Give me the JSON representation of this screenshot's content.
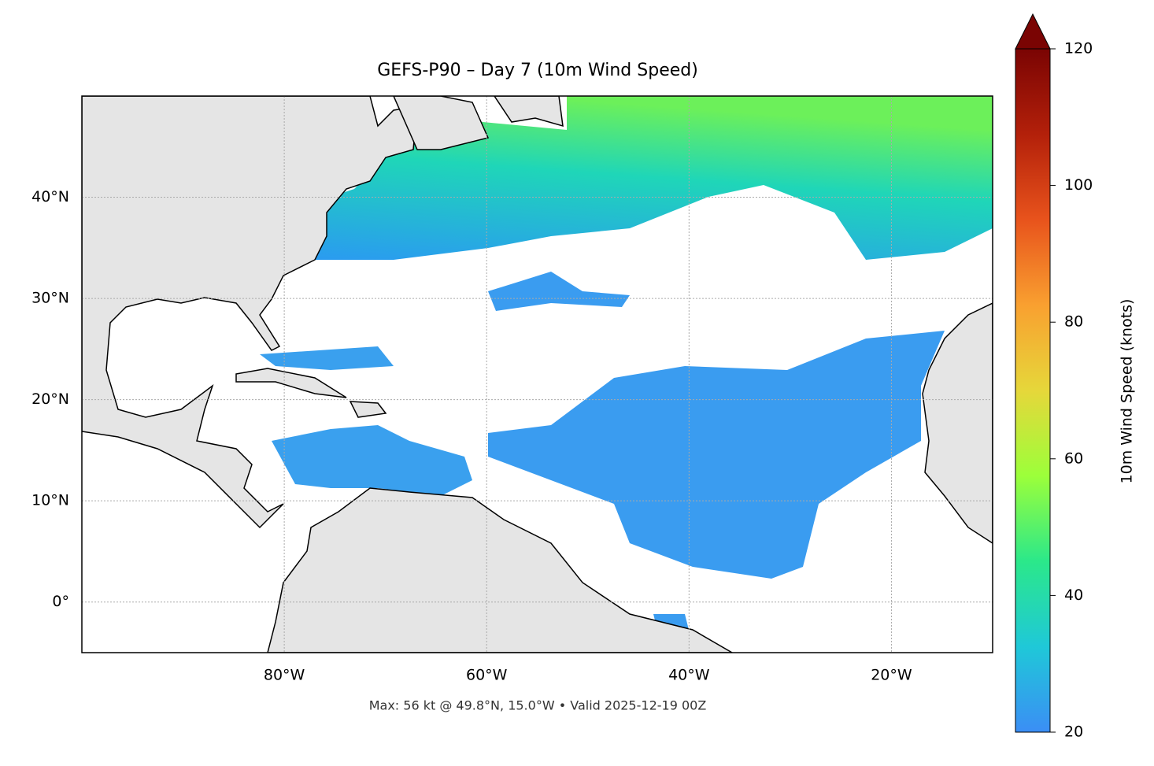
{
  "title": "GEFS-P90 – Day 7 (10m Wind Speed)",
  "map": {
    "xlim": [
      -100,
      -10
    ],
    "ylim": [
      -5,
      50
    ],
    "xticks": [
      {
        "value": -80,
        "label": "80°W"
      },
      {
        "value": -60,
        "label": "60°W"
      },
      {
        "value": -40,
        "label": "40°W"
      },
      {
        "value": -20,
        "label": "20°W"
      }
    ],
    "yticks": [
      {
        "value": 0,
        "label": "0°"
      },
      {
        "value": 10,
        "label": "10°N"
      },
      {
        "value": 20,
        "label": "20°N"
      },
      {
        "value": 30,
        "label": "30°N"
      },
      {
        "value": 40,
        "label": "40°N"
      }
    ],
    "grid": true
  },
  "colorbar": {
    "label": "10m Wind Speed (knots)",
    "lim": [
      20,
      120
    ],
    "ticks": [
      20,
      40,
      60,
      80,
      100,
      120
    ],
    "colormap": [
      "#3b8ef5",
      "#1fc8d8",
      "#2be88a",
      "#9cff3a",
      "#e6d73a",
      "#f9a030",
      "#e8531c",
      "#b3200a",
      "#7a0403"
    ],
    "extend": "max"
  },
  "footer": "Max: 56 kt @ 49.8°N, 15.0°W • Valid 2025-12-19 00Z"
}
